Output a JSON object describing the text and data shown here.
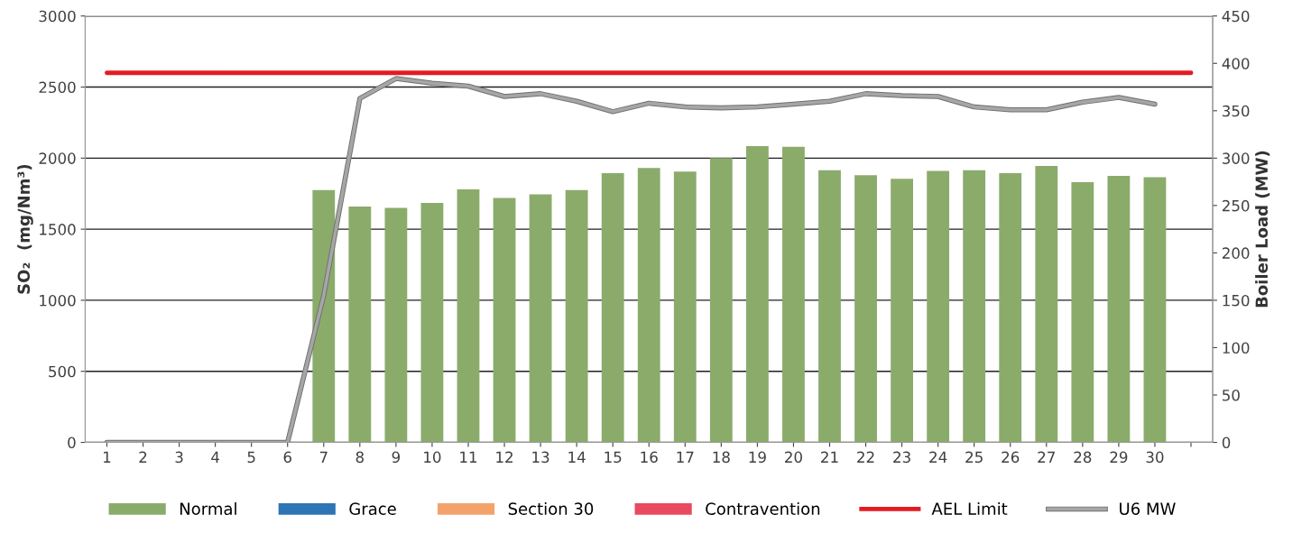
{
  "chart_data": {
    "type": "bar",
    "ylabel": "SO₂  (mg/Nm³)",
    "y2label": "Boiler Load (MW)",
    "categories": [
      "1",
      "2",
      "3",
      "4",
      "5",
      "6",
      "7",
      "8",
      "9",
      "10",
      "11",
      "12",
      "13",
      "14",
      "15",
      "16",
      "17",
      "18",
      "19",
      "20",
      "21",
      "22",
      "23",
      "24",
      "25",
      "26",
      "27",
      "28",
      "29",
      "30",
      null
    ],
    "series": [
      {
        "name": "Normal",
        "color": "#8bab6b",
        "values": [
          null,
          null,
          null,
          null,
          null,
          null,
          1775,
          1660,
          1650,
          1685,
          1780,
          1720,
          1745,
          1775,
          1895,
          1930,
          1905,
          2000,
          2085,
          2080,
          1915,
          1880,
          1855,
          1910,
          1915,
          1895,
          1945,
          1830,
          1875,
          1865,
          null
        ]
      },
      {
        "name": "Grace",
        "color": "#2e75b6",
        "values": [
          null,
          null,
          null,
          null,
          null,
          null,
          0,
          0,
          0,
          0,
          0,
          0,
          0,
          0,
          0,
          0,
          0,
          0,
          0,
          0,
          0,
          0,
          0,
          0,
          0,
          0,
          0,
          0,
          0,
          0,
          null
        ]
      },
      {
        "name": "Section 30",
        "color": "#f4a26b",
        "values": [
          null,
          null,
          null,
          null,
          null,
          null,
          0,
          0,
          0,
          0,
          0,
          0,
          0,
          0,
          0,
          0,
          0,
          0,
          0,
          0,
          0,
          0,
          0,
          0,
          0,
          0,
          0,
          0,
          0,
          0,
          null
        ]
      },
      {
        "name": "Contravention",
        "color": "#e84a5f",
        "values": [
          null,
          null,
          null,
          null,
          null,
          null,
          0,
          0,
          0,
          0,
          0,
          0,
          0,
          0,
          0,
          0,
          0,
          0,
          0,
          0,
          0,
          0,
          0,
          0,
          0,
          0,
          0,
          0,
          0,
          0,
          null
        ]
      },
      {
        "name": "AEL Limit",
        "type": "line",
        "color": "#e31b23",
        "values": [
          2600,
          2600,
          2600,
          2600,
          2600,
          2600,
          2600,
          2600,
          2600,
          2600,
          2600,
          2600,
          2600,
          2600,
          2600,
          2600,
          2600,
          2600,
          2600,
          2600,
          2600,
          2600,
          2600,
          2600,
          2600,
          2600,
          2600,
          2600,
          2600,
          2600,
          2600
        ]
      },
      {
        "name": "U6 MW",
        "type": "line",
        "axis": "y2",
        "color": "#a6a6a6",
        "values": [
          0,
          0,
          0,
          0,
          0,
          0,
          155,
          363,
          384,
          379,
          376,
          365,
          368,
          360,
          349,
          358,
          354,
          353,
          354,
          357,
          360,
          368,
          366,
          365,
          354,
          351,
          351,
          359,
          364,
          357,
          null
        ]
      }
    ],
    "ylim": [
      0,
      3000
    ],
    "yticks": [
      0,
      500,
      1000,
      1500,
      2000,
      2500,
      3000
    ],
    "y2lim": [
      0,
      450
    ],
    "y2ticks": [
      0,
      50,
      100,
      150,
      200,
      250,
      300,
      350,
      400,
      450
    ],
    "grid": "y",
    "legend": "bottom",
    "marker": "none",
    "line_style": "solid"
  }
}
